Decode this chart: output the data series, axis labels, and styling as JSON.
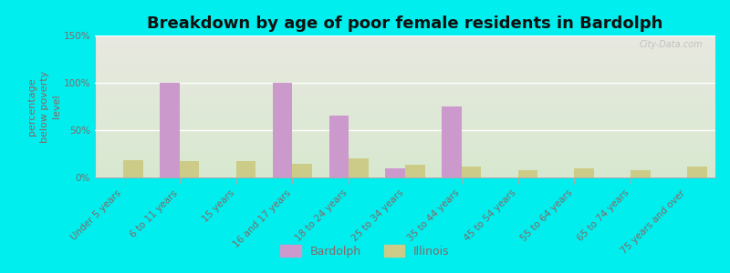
{
  "title": "Breakdown by age of poor female residents in Bardolph",
  "ylabel": "percentage\nbelow poverty\nlevel",
  "categories": [
    "Under 5 years",
    "6 to 11 years",
    "15 years",
    "16 and 17 years",
    "18 to 24 years",
    "25 to 34 years",
    "35 to 44 years",
    "45 to 54 years",
    "55 to 64 years",
    "65 to 74 years",
    "75 years and over"
  ],
  "bardolph": [
    0,
    100,
    0,
    100,
    65,
    10,
    75,
    0,
    0,
    0,
    0
  ],
  "illinois": [
    18,
    17,
    17,
    14,
    20,
    13,
    12,
    8,
    10,
    8,
    12
  ],
  "bardolph_color": "#cc99cc",
  "illinois_color": "#cccc88",
  "bg_top_color": "#e8e8e0",
  "bg_bottom_color": "#d8e8d0",
  "outer_bg": "#00eeee",
  "ylim": [
    0,
    150
  ],
  "yticks": [
    0,
    50,
    100,
    150
  ],
  "ytick_labels": [
    "0%",
    "50%",
    "100%",
    "150%"
  ],
  "bar_width": 0.35,
  "title_fontsize": 13,
  "axis_label_fontsize": 8,
  "tick_fontsize": 7.5,
  "legend_fontsize": 9,
  "tick_color": "#886666",
  "watermark": "City-Data.com"
}
